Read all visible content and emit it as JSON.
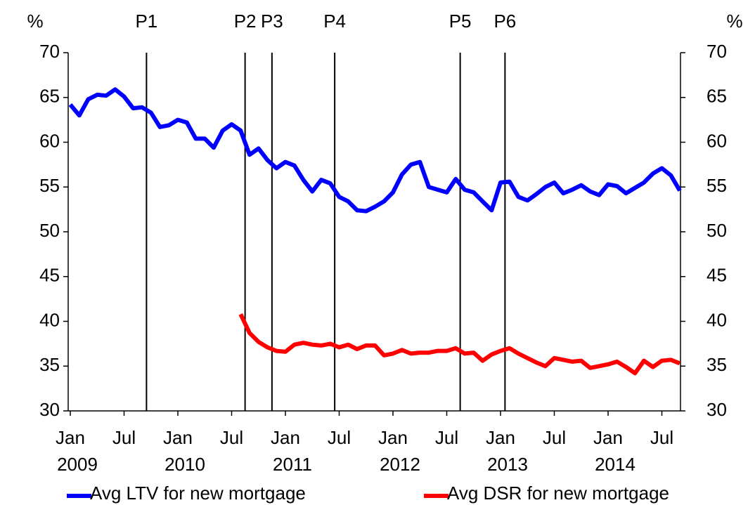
{
  "chart_data": {
    "type": "line",
    "ylabel": "%",
    "y2label": "%",
    "x": [
      "2009-01",
      "2009-02",
      "2009-03",
      "2009-04",
      "2009-05",
      "2009-06",
      "2009-07",
      "2009-08",
      "2009-09",
      "2009-10",
      "2009-11",
      "2009-12",
      "2010-01",
      "2010-02",
      "2010-03",
      "2010-04",
      "2010-05",
      "2010-06",
      "2010-07",
      "2010-08",
      "2010-09",
      "2010-10",
      "2010-11",
      "2010-12",
      "2011-01",
      "2011-02",
      "2011-03",
      "2011-04",
      "2011-05",
      "2011-06",
      "2011-07",
      "2011-08",
      "2011-09",
      "2011-10",
      "2011-11",
      "2011-12",
      "2012-01",
      "2012-02",
      "2012-03",
      "2012-04",
      "2012-05",
      "2012-06",
      "2012-07",
      "2012-08",
      "2012-09",
      "2012-10",
      "2012-11",
      "2012-12",
      "2013-01",
      "2013-02",
      "2013-03",
      "2013-04",
      "2013-05",
      "2013-06",
      "2013-07",
      "2013-08",
      "2013-09",
      "2013-10",
      "2013-11",
      "2013-12",
      "2014-01",
      "2014-02",
      "2014-03",
      "2014-04",
      "2014-05",
      "2014-06",
      "2014-07",
      "2014-08",
      "2014-09"
    ],
    "series": [
      {
        "name": "Avg LTV for new mortgage",
        "color": "#0000ff",
        "values": [
          64.2,
          63.0,
          64.8,
          65.3,
          65.2,
          65.9,
          65.1,
          63.8,
          63.9,
          63.3,
          61.7,
          61.9,
          62.5,
          62.2,
          60.4,
          60.4,
          59.4,
          61.3,
          62.0,
          61.3,
          58.6,
          59.3,
          58.0,
          57.1,
          57.8,
          57.4,
          55.8,
          54.5,
          55.8,
          55.4,
          53.9,
          53.4,
          52.4,
          52.3,
          52.8,
          53.4,
          54.4,
          56.4,
          57.5,
          57.8,
          55.0,
          54.7,
          54.4,
          55.9,
          54.7,
          54.4,
          53.4,
          52.4,
          55.5,
          55.6,
          53.9,
          53.5,
          54.2,
          55.0,
          55.5,
          54.3,
          54.7,
          55.2,
          54.5,
          54.1,
          55.3,
          55.1,
          54.3,
          54.9,
          55.5,
          56.5,
          57.1,
          56.3,
          54.6
        ]
      },
      {
        "name": "Avg DSR for new mortgage",
        "color": "#ff0000",
        "values": [
          null,
          null,
          null,
          null,
          null,
          null,
          null,
          null,
          null,
          null,
          null,
          null,
          null,
          null,
          null,
          null,
          null,
          null,
          null,
          40.8,
          38.7,
          37.7,
          37.1,
          36.7,
          36.6,
          37.4,
          37.6,
          37.4,
          37.3,
          37.5,
          37.1,
          37.4,
          36.9,
          37.3,
          37.3,
          36.2,
          36.4,
          36.8,
          36.4,
          36.5,
          36.5,
          36.7,
          36.7,
          37.0,
          36.4,
          36.5,
          35.6,
          36.3,
          36.7,
          37.0,
          36.4,
          35.9,
          35.4,
          35.0,
          35.9,
          35.7,
          35.5,
          35.6,
          34.8,
          35.0,
          35.2,
          35.5,
          34.9,
          34.2,
          35.6,
          34.9,
          35.6,
          35.7,
          35.3
        ]
      }
    ],
    "xticks": [
      {
        "value": "2009-01",
        "label": "Jan",
        "year": "2009"
      },
      {
        "value": "2009-07",
        "label": "Jul"
      },
      {
        "value": "2010-01",
        "label": "Jan",
        "year": "2010"
      },
      {
        "value": "2010-07",
        "label": "Jul"
      },
      {
        "value": "2011-01",
        "label": "Jan",
        "year": "2011"
      },
      {
        "value": "2011-07",
        "label": "Jul"
      },
      {
        "value": "2012-01",
        "label": "Jan",
        "year": "2012"
      },
      {
        "value": "2012-07",
        "label": "Jul"
      },
      {
        "value": "2013-01",
        "label": "Jan",
        "year": "2013"
      },
      {
        "value": "2013-07",
        "label": "Jul"
      },
      {
        "value": "2014-01",
        "label": "Jan",
        "year": "2014"
      },
      {
        "value": "2014-07",
        "label": "Jul"
      }
    ],
    "ylim": [
      30,
      70
    ],
    "yticks": [
      30,
      35,
      40,
      45,
      50,
      55,
      60,
      65,
      70
    ],
    "y2lim": [
      30,
      70
    ],
    "y2ticks": [
      30,
      35,
      40,
      45,
      50,
      55,
      60,
      65,
      70
    ],
    "annotations": [
      {
        "label": "P1",
        "x": "2009-10"
      },
      {
        "label": "P2",
        "x": "2010-09"
      },
      {
        "label": "P3",
        "x": "2010-12"
      },
      {
        "label": "P4",
        "x": "2011-07"
      },
      {
        "label": "P5",
        "x": "2012-09"
      },
      {
        "label": "P6",
        "x": "2013-02"
      }
    ],
    "legend": "bottom"
  }
}
